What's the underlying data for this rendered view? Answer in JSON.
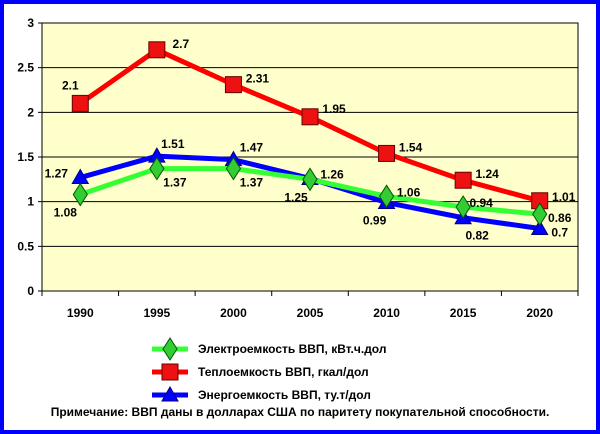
{
  "chart_data": {
    "type": "line",
    "x": [
      "1990",
      "1995",
      "2000",
      "2005",
      "2010",
      "2015",
      "2020"
    ],
    "ylim": [
      0,
      3
    ],
    "y_ticks": [
      "0",
      "0.5",
      "1",
      "1.5",
      "2",
      "2.5",
      "3"
    ],
    "grid": "horizontal",
    "legend_position": "bottom",
    "series": [
      {
        "name": "Электроемкость ВВП, кВт.ч.дол",
        "values": [
          1.08,
          1.37,
          1.37,
          1.25,
          1.06,
          0.94,
          0.86
        ],
        "labels": [
          "1.08",
          "1.37",
          "1.37",
          "1.25",
          "1.06",
          "0.94",
          "0.86"
        ],
        "line_color": "#33FF33",
        "marker": "diamond",
        "marker_color": "#33CC33"
      },
      {
        "name": "Теплоемкость ВВП, гкал/дол",
        "values": [
          2.1,
          2.7,
          2.31,
          1.95,
          1.54,
          1.24,
          1.01
        ],
        "labels": [
          "2.1",
          "2.7",
          "2.31",
          "1.95",
          "1.54",
          "1.24",
          "1.01"
        ],
        "line_color": "#FF0000",
        "marker": "square",
        "marker_color": "#EE1111"
      },
      {
        "name": "Энергоемкость ВВП, ту.т/дол",
        "values": [
          1.27,
          1.51,
          1.47,
          1.26,
          0.99,
          0.82,
          0.7
        ],
        "labels": [
          "1.27",
          "1.51",
          "1.47",
          "1.26",
          "0.99",
          "0.82",
          "0.7"
        ],
        "line_color": "#0000FF",
        "marker": "triangle",
        "marker_color": "#0000FF"
      }
    ]
  },
  "note": "Примечание: ВВП даны в долларах США по паритету покупательной способности.",
  "colors": {
    "frame": "#0000FF",
    "plot_background": "#FFFFCC",
    "gridline": "#000000"
  }
}
